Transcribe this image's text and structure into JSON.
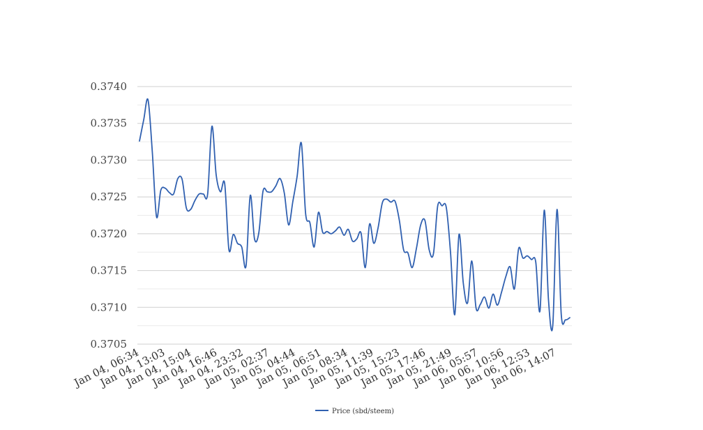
{
  "chart_data": {
    "type": "line",
    "title": "",
    "xlabel": "",
    "ylabel": "",
    "ylim": [
      0.3705,
      0.374
    ],
    "y_ticks": [
      "0.3740",
      "0.3735",
      "0.3730",
      "0.3725",
      "0.3720",
      "0.3715",
      "0.3710",
      "0.3705"
    ],
    "y_tick_values": [
      0.374,
      0.3735,
      0.373,
      0.3725,
      0.372,
      0.3715,
      0.371,
      0.3705
    ],
    "x_tick_labels": [
      "Jan 04, 06:34",
      "Jan 04, 13:03",
      "Jan 04, 15:04",
      "Jan 04, 16:46",
      "Jan 04, 23:32",
      "Jan 05, 02:37",
      "Jan 05, 04:44",
      "Jan 05, 06:51",
      "Jan 05, 08:34",
      "Jan 05, 11:39",
      "Jan 05, 15:23",
      "Jan 05, 17:46",
      "Jan 05, 21:49",
      "Jan 06, 05:57",
      "Jan 06, 10:56",
      "Jan 06, 12:53",
      "Jan 06, 14:07"
    ],
    "grid": true,
    "legend_position": "bottom-center",
    "series": [
      {
        "name": "Price (sbd/steem)",
        "color": "#3060b0",
        "values": [
          0.37326,
          0.37355,
          0.37382,
          0.37312,
          0.37223,
          0.37259,
          0.37262,
          0.37256,
          0.37254,
          0.37275,
          0.37274,
          0.37235,
          0.37233,
          0.37245,
          0.37254,
          0.37254,
          0.37254,
          0.37346,
          0.3728,
          0.37257,
          0.37268,
          0.37178,
          0.37199,
          0.37187,
          0.37182,
          0.37156,
          0.37252,
          0.37193,
          0.37201,
          0.37258,
          0.37257,
          0.37257,
          0.37265,
          0.37275,
          0.37255,
          0.37212,
          0.37244,
          0.37278,
          0.37323,
          0.37227,
          0.37215,
          0.37182,
          0.37229,
          0.37202,
          0.37203,
          0.372,
          0.37204,
          0.37209,
          0.37198,
          0.37206,
          0.3719,
          0.37193,
          0.37201,
          0.37154,
          0.37213,
          0.37187,
          0.37208,
          0.37242,
          0.37247,
          0.37243,
          0.37244,
          0.37218,
          0.37178,
          0.37174,
          0.37154,
          0.3718,
          0.37212,
          0.37218,
          0.37178,
          0.37173,
          0.37238,
          0.37238,
          0.37236,
          0.37175,
          0.3709,
          0.37199,
          0.37133,
          0.37106,
          0.37163,
          0.37099,
          0.37104,
          0.37114,
          0.37099,
          0.37118,
          0.37103,
          0.37121,
          0.37142,
          0.37155,
          0.37125,
          0.3718,
          0.37167,
          0.3717,
          0.37165,
          0.37162,
          0.37095,
          0.37232,
          0.3711,
          0.37075,
          0.37233,
          0.3709,
          0.37083,
          0.37086
        ]
      }
    ]
  }
}
